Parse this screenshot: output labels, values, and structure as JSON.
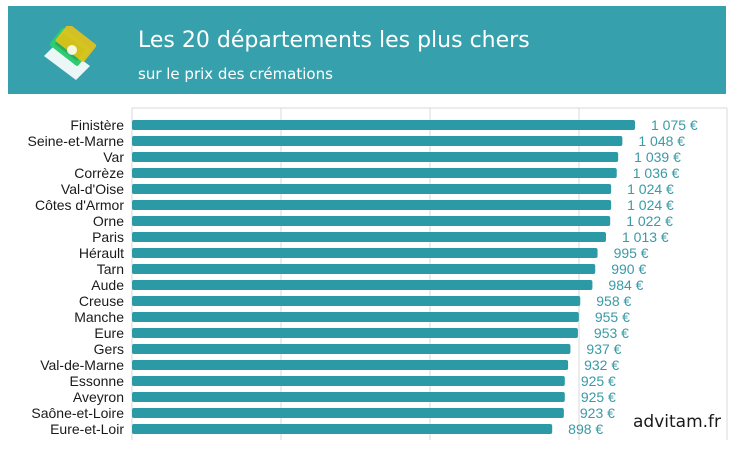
{
  "header": {
    "title": "Les 20 départements les plus chers",
    "subtitle": "sur le prix des crémations",
    "icon": "money-banknote-icon",
    "background": "#36a1ad"
  },
  "brand": "advitam.fr",
  "chart_data": {
    "type": "bar",
    "orientation": "horizontal",
    "title": "Les 20 départements les plus chers",
    "subtitle": "sur le prix des crémations",
    "categories": [
      "Finistère",
      "Seine-et-Marne",
      "Var",
      "Corrèze",
      "Val-d'Oise",
      "Côtes d'Armor",
      "Orne",
      "Paris",
      "Hérault",
      "Tarn",
      "Aude",
      "Creuse",
      "Manche",
      "Eure",
      "Gers",
      "Val-de-Marne",
      "Essonne",
      "Aveyron",
      "Saône-et-Loire",
      "Eure-et-Loir"
    ],
    "values": [
      1075,
      1048,
      1039,
      1036,
      1024,
      1024,
      1022,
      1013,
      995,
      990,
      984,
      958,
      955,
      953,
      937,
      932,
      925,
      925,
      923,
      898
    ],
    "value_labels": [
      "1 075 €",
      "1 048 €",
      "1 039 €",
      "1 036 €",
      "1 024 €",
      "1 024 €",
      "1 022 €",
      "1 013 €",
      "995 €",
      "990 €",
      "984 €",
      "958 €",
      "955 €",
      "953 €",
      "937 €",
      "932 €",
      "925 €",
      "925 €",
      "923 €",
      "898 €"
    ],
    "value_unit": "€",
    "bar_color": "#2b9aa6",
    "label_color": "#3a9aa6",
    "grid": true,
    "legend": false
  }
}
